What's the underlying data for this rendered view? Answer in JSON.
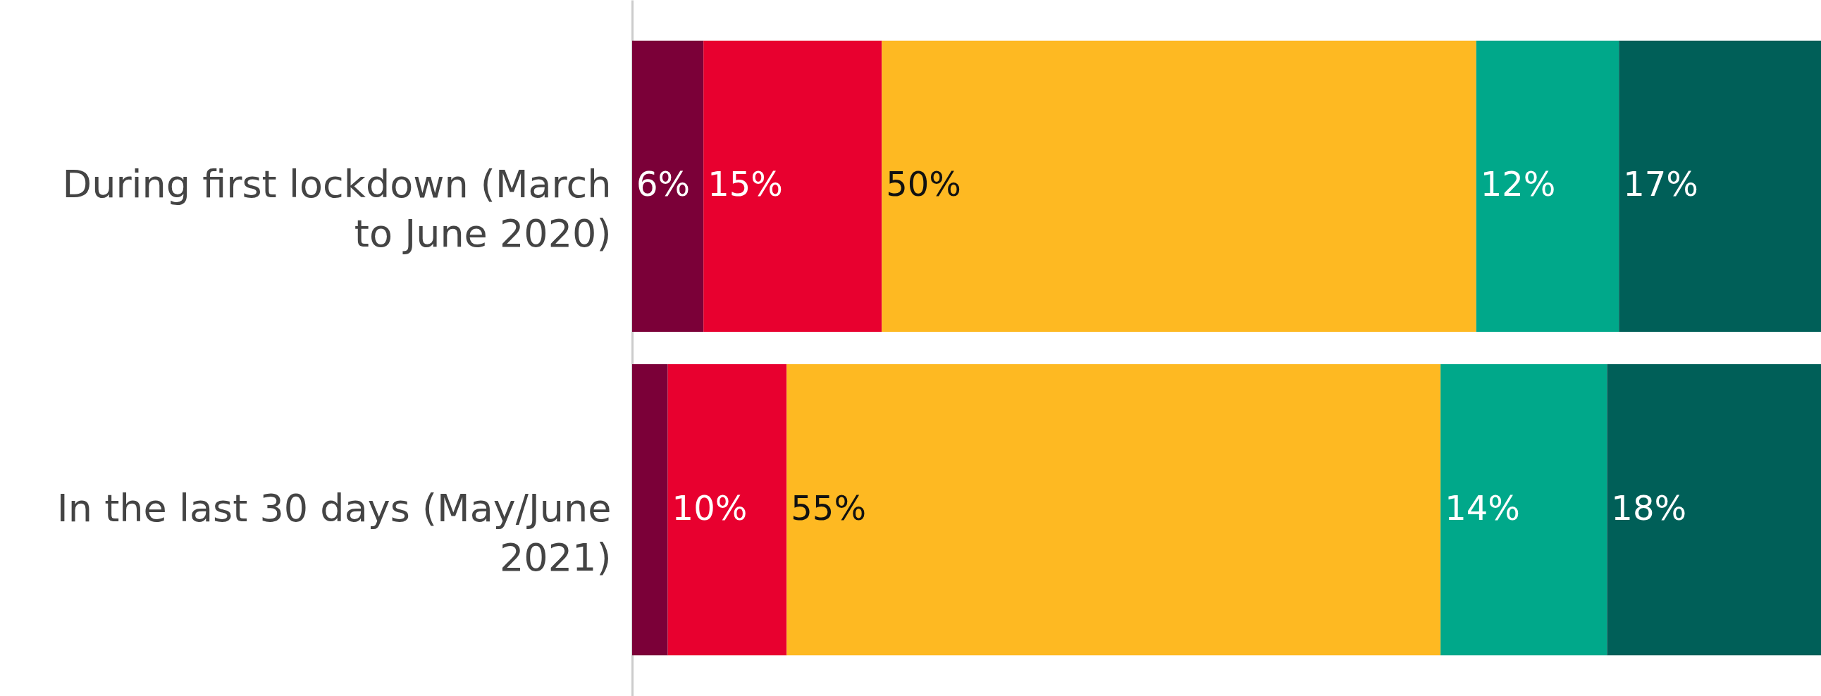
{
  "chart_data": {
    "type": "bar",
    "orientation": "horizontal",
    "stacked": true,
    "categories": [
      "During first lockdown (March to June 2020)",
      "In the last 30 days (May/June 2021)"
    ],
    "series": [
      {
        "color": "#7b0038",
        "values": [
          6,
          3
        ],
        "value_labels": [
          "6%",
          null
        ]
      },
      {
        "color": "#e8002f",
        "values": [
          15,
          10
        ],
        "value_labels": [
          "15%",
          "10%"
        ]
      },
      {
        "color": "#feb922",
        "values": [
          50,
          55
        ],
        "value_labels": [
          "50%",
          "55%"
        ]
      },
      {
        "color": "#00a88a",
        "values": [
          12,
          14
        ],
        "value_labels": [
          "12%",
          "14%"
        ]
      },
      {
        "color": "#005f58",
        "values": [
          17,
          18
        ],
        "value_labels": [
          "17%",
          "18%"
        ]
      }
    ]
  }
}
